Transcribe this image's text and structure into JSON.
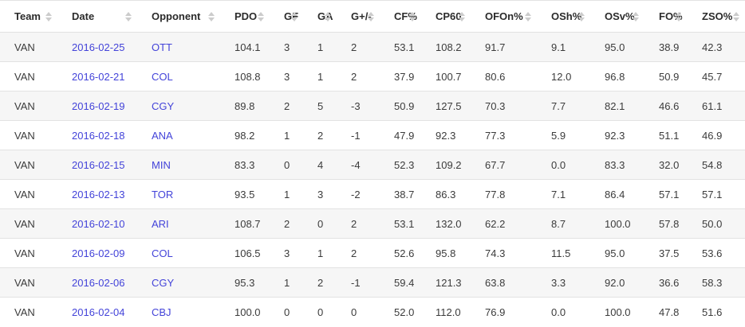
{
  "colors": {
    "link": "#4343d9",
    "stripe": "#f6f6f6",
    "border": "#e2e2e2",
    "header_text": "#2b2b2b",
    "body_text": "#3b3b3b",
    "sort_icon": "#cccccc"
  },
  "table": {
    "columns": [
      {
        "key": "team",
        "label": "Team",
        "link": false
      },
      {
        "key": "date",
        "label": "Date",
        "link": true
      },
      {
        "key": "opponent",
        "label": "Opponent",
        "link": true
      },
      {
        "key": "pdo",
        "label": "PDO",
        "link": false
      },
      {
        "key": "gf",
        "label": "GF",
        "link": false
      },
      {
        "key": "ga",
        "label": "GA",
        "link": false
      },
      {
        "key": "gpm",
        "label": "G+/-",
        "link": false
      },
      {
        "key": "cf-pct",
        "label": "CF%",
        "link": false
      },
      {
        "key": "cp60",
        "label": "CP60",
        "link": false
      },
      {
        "key": "ofon-pct",
        "label": "OFOn%",
        "link": false
      },
      {
        "key": "osh-pct",
        "label": "OSh%",
        "link": false
      },
      {
        "key": "osv-pct",
        "label": "OSv%",
        "link": false
      },
      {
        "key": "fo-pct",
        "label": "FO%",
        "link": false
      },
      {
        "key": "zso-pct",
        "label": "ZSO%",
        "link": false
      }
    ],
    "rows": [
      [
        "VAN",
        "2016-02-25",
        "OTT",
        "104.1",
        "3",
        "1",
        "2",
        "53.1",
        "108.2",
        "91.7",
        "9.1",
        "95.0",
        "38.9",
        "42.3"
      ],
      [
        "VAN",
        "2016-02-21",
        "COL",
        "108.8",
        "3",
        "1",
        "2",
        "37.9",
        "100.7",
        "80.6",
        "12.0",
        "96.8",
        "50.9",
        "45.7"
      ],
      [
        "VAN",
        "2016-02-19",
        "CGY",
        "89.8",
        "2",
        "5",
        "-3",
        "50.9",
        "127.5",
        "70.3",
        "7.7",
        "82.1",
        "46.6",
        "61.1"
      ],
      [
        "VAN",
        "2016-02-18",
        "ANA",
        "98.2",
        "1",
        "2",
        "-1",
        "47.9",
        "92.3",
        "77.3",
        "5.9",
        "92.3",
        "51.1",
        "46.9"
      ],
      [
        "VAN",
        "2016-02-15",
        "MIN",
        "83.3",
        "0",
        "4",
        "-4",
        "52.3",
        "109.2",
        "67.7",
        "0.0",
        "83.3",
        "32.0",
        "54.8"
      ],
      [
        "VAN",
        "2016-02-13",
        "TOR",
        "93.5",
        "1",
        "3",
        "-2",
        "38.7",
        "86.3",
        "77.8",
        "7.1",
        "86.4",
        "57.1",
        "57.1"
      ],
      [
        "VAN",
        "2016-02-10",
        "ARI",
        "108.7",
        "2",
        "0",
        "2",
        "53.1",
        "132.0",
        "62.2",
        "8.7",
        "100.0",
        "57.8",
        "50.0"
      ],
      [
        "VAN",
        "2016-02-09",
        "COL",
        "106.5",
        "3",
        "1",
        "2",
        "52.6",
        "95.8",
        "74.3",
        "11.5",
        "95.0",
        "37.5",
        "53.6"
      ],
      [
        "VAN",
        "2016-02-06",
        "CGY",
        "95.3",
        "1",
        "2",
        "-1",
        "59.4",
        "121.3",
        "63.8",
        "3.3",
        "92.0",
        "36.6",
        "58.3"
      ],
      [
        "VAN",
        "2016-02-04",
        "CBJ",
        "100.0",
        "0",
        "0",
        "0",
        "52.0",
        "112.0",
        "76.9",
        "0.0",
        "100.0",
        "47.8",
        "51.6"
      ]
    ]
  }
}
